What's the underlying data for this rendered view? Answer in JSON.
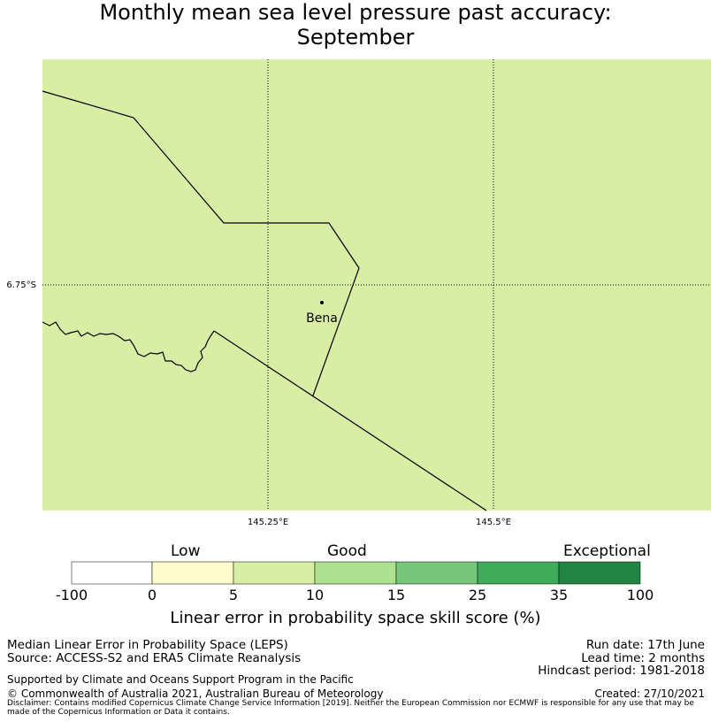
{
  "title_line1": "Monthly mean sea level pressure past accuracy:",
  "title_line2": "September",
  "map": {
    "background_color": "#d9eea5",
    "place_label": "Bena",
    "lat_label": "6.75°S",
    "lon_labels": [
      "145.25°E",
      "145.5°E"
    ]
  },
  "colorbar": {
    "category_labels": [
      "Low",
      "Good",
      "Exceptional"
    ],
    "ticks": [
      "-100",
      "0",
      "5",
      "10",
      "15",
      "25",
      "35",
      "100"
    ],
    "colors": [
      "#ffffff",
      "#fefccc",
      "#d9eea5",
      "#ade08f",
      "#77c679",
      "#41ab5c",
      "#238543"
    ],
    "title": "Linear error in probability space skill score (%)"
  },
  "footer": {
    "left1": "Median Linear Error in Probability Space (LEPS)",
    "left2": "Source: ACCESS-S2 and ERA5 Climate Reanalysis",
    "right1": "Run date: 17th June",
    "right2": "Lead time: 2 months",
    "right3": "Hindcast period: 1981-2018",
    "support": "Supported by Climate and Oceans Support Program in the Pacific",
    "copyright": "© Commonwealth of Australia 2021, Australian Bureau of Meteorology",
    "created": "Created: 27/10/2021",
    "disclaimer": "Disclaimer: Contains modified Copernicus Climate Change Service Information [2019]. Neither the European Commission nor ECMWF is responsible for any use that may be made of the Copernicus Information or Data it contains."
  }
}
